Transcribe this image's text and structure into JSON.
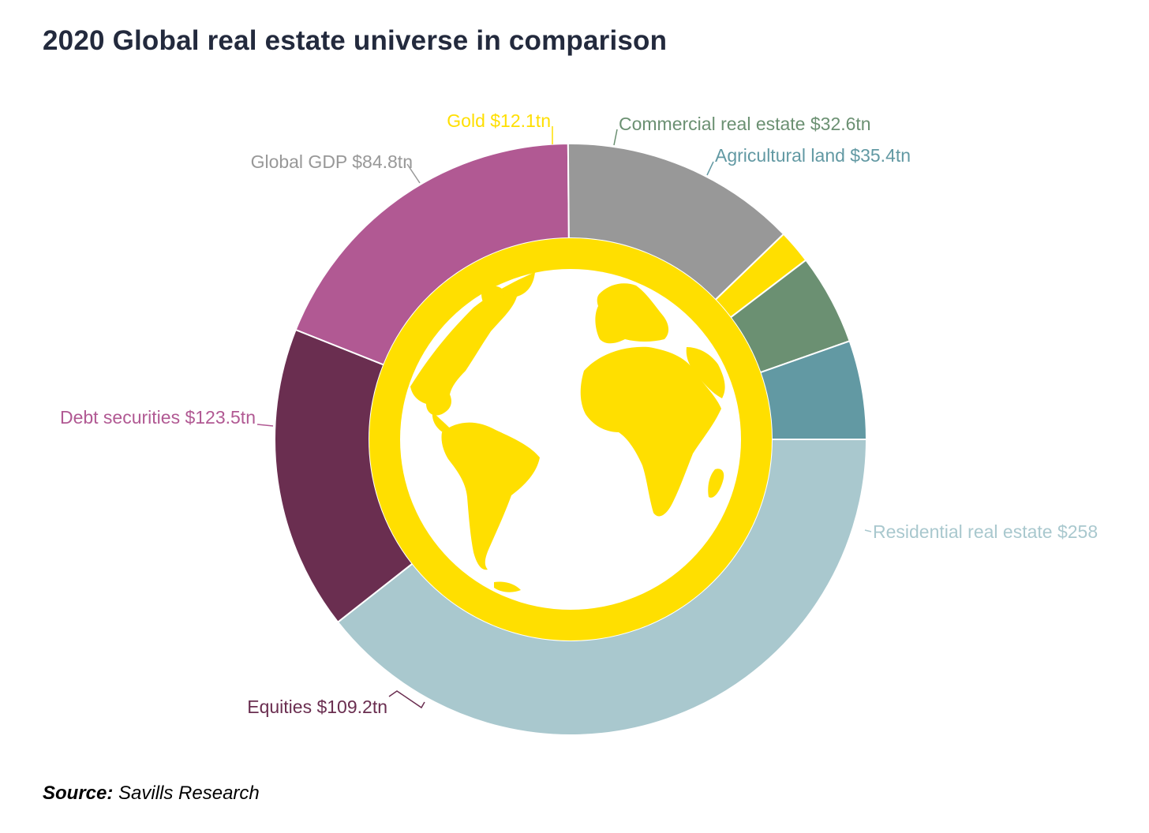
{
  "title": "2020 Global real estate universe in comparison",
  "source": {
    "prefix": "Source:",
    "text": "Savills Research"
  },
  "colors": {
    "ring_fill": "#ffdf00",
    "globe_background": "#ffffff",
    "continents": "#ffdf00"
  },
  "chart_data": {
    "type": "pie",
    "variant": "donut",
    "unit": "$tn",
    "segments": [
      {
        "name": "Residential real estate",
        "label": "Residential real estate $258",
        "value": 258.5,
        "color": "#a9c8ce",
        "text_color": "#a9c8ce"
      },
      {
        "name": "Equities",
        "label": "Equities $109.2tn",
        "value": 109.2,
        "color": "#6a2e50",
        "text_color": "#6a2e50"
      },
      {
        "name": "Debt securities",
        "label": "Debt securities $123.5tn",
        "value": 123.5,
        "color": "#b15993",
        "text_color": "#b15993"
      },
      {
        "name": "Global GDP",
        "label": "Global GDP $84.8tn",
        "value": 84.8,
        "color": "#989898",
        "text_color": "#989898"
      },
      {
        "name": "Gold",
        "label": "Gold $12.1tn",
        "value": 12.1,
        "color": "#ffdf00",
        "text_color": "#ffdf00"
      },
      {
        "name": "Commercial real estate",
        "label": "Commercial real estate $32.6tn",
        "value": 32.6,
        "color": "#6b9072",
        "text_color": "#6b9072"
      },
      {
        "name": "Agricultural land",
        "label": "Agricultural land $35.4tn",
        "value": 35.4,
        "color": "#6299a3",
        "text_color": "#6299a3"
      }
    ]
  }
}
